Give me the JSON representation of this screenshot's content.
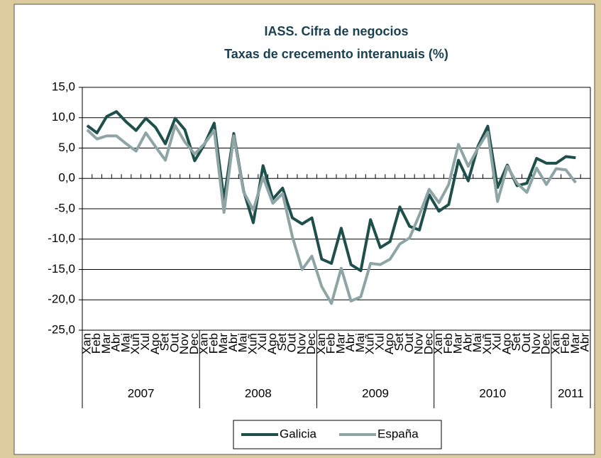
{
  "chart_data": {
    "type": "line",
    "title": "IASS. Cifra de negocios",
    "subtitle": "Taxas de crecemento interanuais (%)",
    "categories": [
      "Xan",
      "Feb",
      "Mar",
      "Abr",
      "Mai",
      "Xuñ",
      "Xul",
      "Ago",
      "Set",
      "Out",
      "Nov",
      "Dec",
      "Xan",
      "Feb",
      "Mar",
      "Abr",
      "Mai",
      "Xuñ",
      "Xul",
      "Ago",
      "Set",
      "Out",
      "Nov",
      "Dec",
      "Xan",
      "Feb",
      "Mar",
      "Abr",
      "Mai",
      "Xuñ",
      "Xul",
      "Ago",
      "Set",
      "Out",
      "Nov",
      "Dec",
      "Xan",
      "Feb",
      "Mar",
      "Abr",
      "Mai",
      "Xuñ",
      "Xul",
      "Ago",
      "Set",
      "Out",
      "Nov",
      "Dec",
      "Xan",
      "Feb",
      "Mar",
      "Abr"
    ],
    "groups": [
      "2007",
      "2008",
      "2009",
      "2010",
      "2011"
    ],
    "series": [
      {
        "name": "Galicia",
        "color": "#1f4f4b",
        "values": [
          8.7,
          7.5,
          10.2,
          11.0,
          9.3,
          7.9,
          9.9,
          8.4,
          5.7,
          9.9,
          8.0,
          2.9,
          5.6,
          9.1,
          -3.5,
          7.4,
          -2.0,
          -7.3,
          2.1,
          -3.4,
          -1.6,
          -6.5,
          -7.5,
          -6.5,
          -13.3,
          -14.0,
          -8.2,
          -14.2,
          -15.2,
          -6.8,
          -11.4,
          -10.4,
          -4.7,
          -7.9,
          -8.5,
          -2.7,
          -5.4,
          -4.3,
          3.0,
          -0.4,
          5.3,
          8.6,
          -1.5,
          2.2,
          -1.2,
          -0.8,
          3.3,
          2.5,
          2.5,
          3.6,
          3.4,
          null
        ]
      },
      {
        "name": "España",
        "color": "#8fa5a5",
        "values": [
          8.0,
          6.5,
          7.0,
          7.0,
          5.7,
          4.5,
          7.5,
          5.2,
          3.0,
          8.7,
          6.0,
          4.0,
          5.7,
          7.9,
          -5.6,
          7.0,
          -2.2,
          -5.2,
          0.2,
          -4.1,
          -2.5,
          -9.6,
          -15.0,
          -12.8,
          -17.8,
          -20.6,
          -14.8,
          -20.2,
          -19.5,
          -14.0,
          -14.2,
          -13.3,
          -10.8,
          -9.8,
          -6.0,
          -1.8,
          -4.0,
          -1.0,
          5.6,
          2.0,
          5.0,
          7.6,
          -3.8,
          2.0,
          -0.8,
          -2.3,
          1.7,
          -1.0,
          1.6,
          1.4,
          -0.7,
          null
        ]
      }
    ],
    "ylim": [
      -25,
      15
    ],
    "yticks": [
      {
        "value": -25,
        "label": "-25,0"
      },
      {
        "value": -20,
        "label": "-20,0"
      },
      {
        "value": -15,
        "label": "-15,0"
      },
      {
        "value": -10,
        "label": "-10,0"
      },
      {
        "value": -5,
        "label": "-5,0"
      },
      {
        "value": 0,
        "label": "0,0"
      },
      {
        "value": 5,
        "label": "5,0"
      },
      {
        "value": 10,
        "label": "10,0"
      },
      {
        "value": 15,
        "label": "15,0"
      }
    ],
    "grid": true,
    "legend": "bottom"
  }
}
